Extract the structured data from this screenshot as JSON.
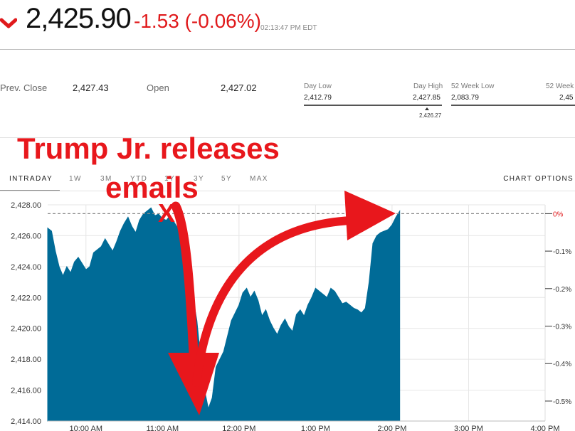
{
  "quote": {
    "price": "2,425.90",
    "change": "-1.53 (-0.06%)",
    "timestamp": "02:13:47 PM EDT"
  },
  "stats": {
    "prev_close_label": "Prev. Close",
    "prev_close_value": "2,427.43",
    "open_label": "Open",
    "open_value": "2,427.02",
    "day_low_label": "Day Low",
    "day_low_value": "2,412.79",
    "day_high_label": "Day High",
    "day_high_value": "2,427.85",
    "day_current": "2,426.27",
    "week52_low_label": "52 Week Low",
    "week52_low_value": "2,083.79",
    "week52_high_label": "52 Week",
    "week52_high_value": "2,45"
  },
  "tabs": [
    {
      "label": "INTRADAY",
      "active": true
    },
    {
      "label": "1W"
    },
    {
      "label": "3M"
    },
    {
      "label": "YTD"
    },
    {
      "label": "1Y"
    },
    {
      "label": "3Y"
    },
    {
      "label": "5Y"
    },
    {
      "label": "MAX"
    }
  ],
  "chart_options_label": "CHART OPTIONS",
  "annotation": {
    "headline": "Trump Jr. releases",
    "headline_line2": "emails",
    "marker": "X"
  },
  "colors": {
    "negative": "#e0191b",
    "area_fill": "#006b97",
    "annotation": "#e8171c"
  },
  "chart_data": {
    "type": "area",
    "title": "",
    "xlabel": "",
    "ylabel": "",
    "ylim": [
      2414.0,
      2428.0
    ],
    "xlim": [
      "9:30 AM",
      "4:00 PM"
    ],
    "y_ticks": [
      "2,414.00",
      "2,416.00",
      "2,418.00",
      "2,420.00",
      "2,422.00",
      "2,424.00",
      "2,426.00",
      "2,428.00"
    ],
    "x_ticks": [
      "10:00 AM",
      "11:00 AM",
      "12:00 PM",
      "1:00 PM",
      "2:00 PM",
      "3:00 PM",
      "4:00 PM"
    ],
    "right_axis_ticks": [
      "0%",
      "-0.1%",
      "-0.2%",
      "-0.3%",
      "-0.4%",
      "-0.5%"
    ],
    "reference_line": {
      "label": "Prev. Close",
      "value": 2427.43
    },
    "grid": true,
    "series": [
      {
        "values": [
          [
            "9:30 AM",
            2426.5
          ],
          [
            "9:33 AM",
            2426.3
          ],
          [
            "9:36 AM",
            2425.0
          ],
          [
            "9:39 AM",
            2424.0
          ],
          [
            "9:42 AM",
            2423.4
          ],
          [
            "9:45 AM",
            2424.0
          ],
          [
            "9:48 AM",
            2423.6
          ],
          [
            "9:51 AM",
            2424.3
          ],
          [
            "9:54 AM",
            2424.6
          ],
          [
            "9:57 AM",
            2424.2
          ],
          [
            "10:00 AM",
            2423.8
          ],
          [
            "10:03 AM",
            2424.0
          ],
          [
            "10:06 AM",
            2424.9
          ],
          [
            "10:09 AM",
            2425.1
          ],
          [
            "10:12 AM",
            2425.3
          ],
          [
            "10:15 AM",
            2425.8
          ],
          [
            "10:18 AM",
            2425.4
          ],
          [
            "10:21 AM",
            2425.0
          ],
          [
            "10:24 AM",
            2425.6
          ],
          [
            "10:27 AM",
            2426.3
          ],
          [
            "10:30 AM",
            2426.8
          ],
          [
            "10:33 AM",
            2427.2
          ],
          [
            "10:36 AM",
            2426.6
          ],
          [
            "10:39 AM",
            2426.2
          ],
          [
            "10:42 AM",
            2427.0
          ],
          [
            "10:45 AM",
            2427.4
          ],
          [
            "10:48 AM",
            2427.6
          ],
          [
            "10:51 AM",
            2427.8
          ],
          [
            "10:54 AM",
            2427.3
          ],
          [
            "10:57 AM",
            2427.4
          ],
          [
            "11:00 AM",
            2427.1
          ],
          [
            "11:03 AM",
            2427.0
          ],
          [
            "11:06 AM",
            2427.3
          ],
          [
            "11:09 AM",
            2426.9
          ],
          [
            "11:12 AM",
            2426.5
          ],
          [
            "11:15 AM",
            2425.8
          ],
          [
            "11:18 AM",
            2425.0
          ],
          [
            "11:21 AM",
            2423.2
          ],
          [
            "11:24 AM",
            2422.0
          ],
          [
            "11:27 AM",
            2420.5
          ],
          [
            "11:30 AM",
            2418.0
          ],
          [
            "11:33 AM",
            2416.0
          ],
          [
            "11:36 AM",
            2414.8
          ],
          [
            "11:39 AM",
            2415.5
          ],
          [
            "11:42 AM",
            2417.5
          ],
          [
            "11:45 AM",
            2418.0
          ],
          [
            "11:48 AM",
            2418.5
          ],
          [
            "11:51 AM",
            2419.5
          ],
          [
            "11:54 AM",
            2420.5
          ],
          [
            "11:57 AM",
            2421.0
          ],
          [
            "12:00 PM",
            2421.5
          ],
          [
            "12:03 PM",
            2422.3
          ],
          [
            "12:06 PM",
            2422.6
          ],
          [
            "12:09 PM",
            2422.0
          ],
          [
            "12:12 PM",
            2422.4
          ],
          [
            "12:15 PM",
            2421.8
          ],
          [
            "12:18 PM",
            2420.8
          ],
          [
            "12:21 PM",
            2421.2
          ],
          [
            "12:24 PM",
            2420.5
          ],
          [
            "12:27 PM",
            2420.0
          ],
          [
            "12:30 PM",
            2419.6
          ],
          [
            "12:33 PM",
            2420.2
          ],
          [
            "12:36 PM",
            2420.6
          ],
          [
            "12:39 PM",
            2420.1
          ],
          [
            "12:42 PM",
            2419.8
          ],
          [
            "12:45 PM",
            2420.9
          ],
          [
            "12:48 PM",
            2421.2
          ],
          [
            "12:51 PM",
            2420.8
          ],
          [
            "12:54 PM",
            2421.5
          ],
          [
            "12:57 PM",
            2422.0
          ],
          [
            "1:00 PM",
            2422.6
          ],
          [
            "1:03 PM",
            2422.4
          ],
          [
            "1:06 PM",
            2422.2
          ],
          [
            "1:09 PM",
            2422.0
          ],
          [
            "1:12 PM",
            2422.6
          ],
          [
            "1:15 PM",
            2422.4
          ],
          [
            "1:18 PM",
            2422.0
          ],
          [
            "1:21 PM",
            2421.6
          ],
          [
            "1:24 PM",
            2421.7
          ],
          [
            "1:27 PM",
            2421.5
          ],
          [
            "1:30 PM",
            2421.3
          ],
          [
            "1:33 PM",
            2421.2
          ],
          [
            "1:36 PM",
            2421.0
          ],
          [
            "1:39 PM",
            2421.3
          ],
          [
            "1:42 PM",
            2423.0
          ],
          [
            "1:45 PM",
            2425.5
          ],
          [
            "1:48 PM",
            2426.0
          ],
          [
            "1:51 PM",
            2426.2
          ],
          [
            "1:54 PM",
            2426.3
          ],
          [
            "1:57 PM",
            2426.4
          ],
          [
            "2:00 PM",
            2426.7
          ],
          [
            "2:03 PM",
            2427.2
          ],
          [
            "2:06 PM",
            2427.6
          ]
        ]
      }
    ]
  }
}
